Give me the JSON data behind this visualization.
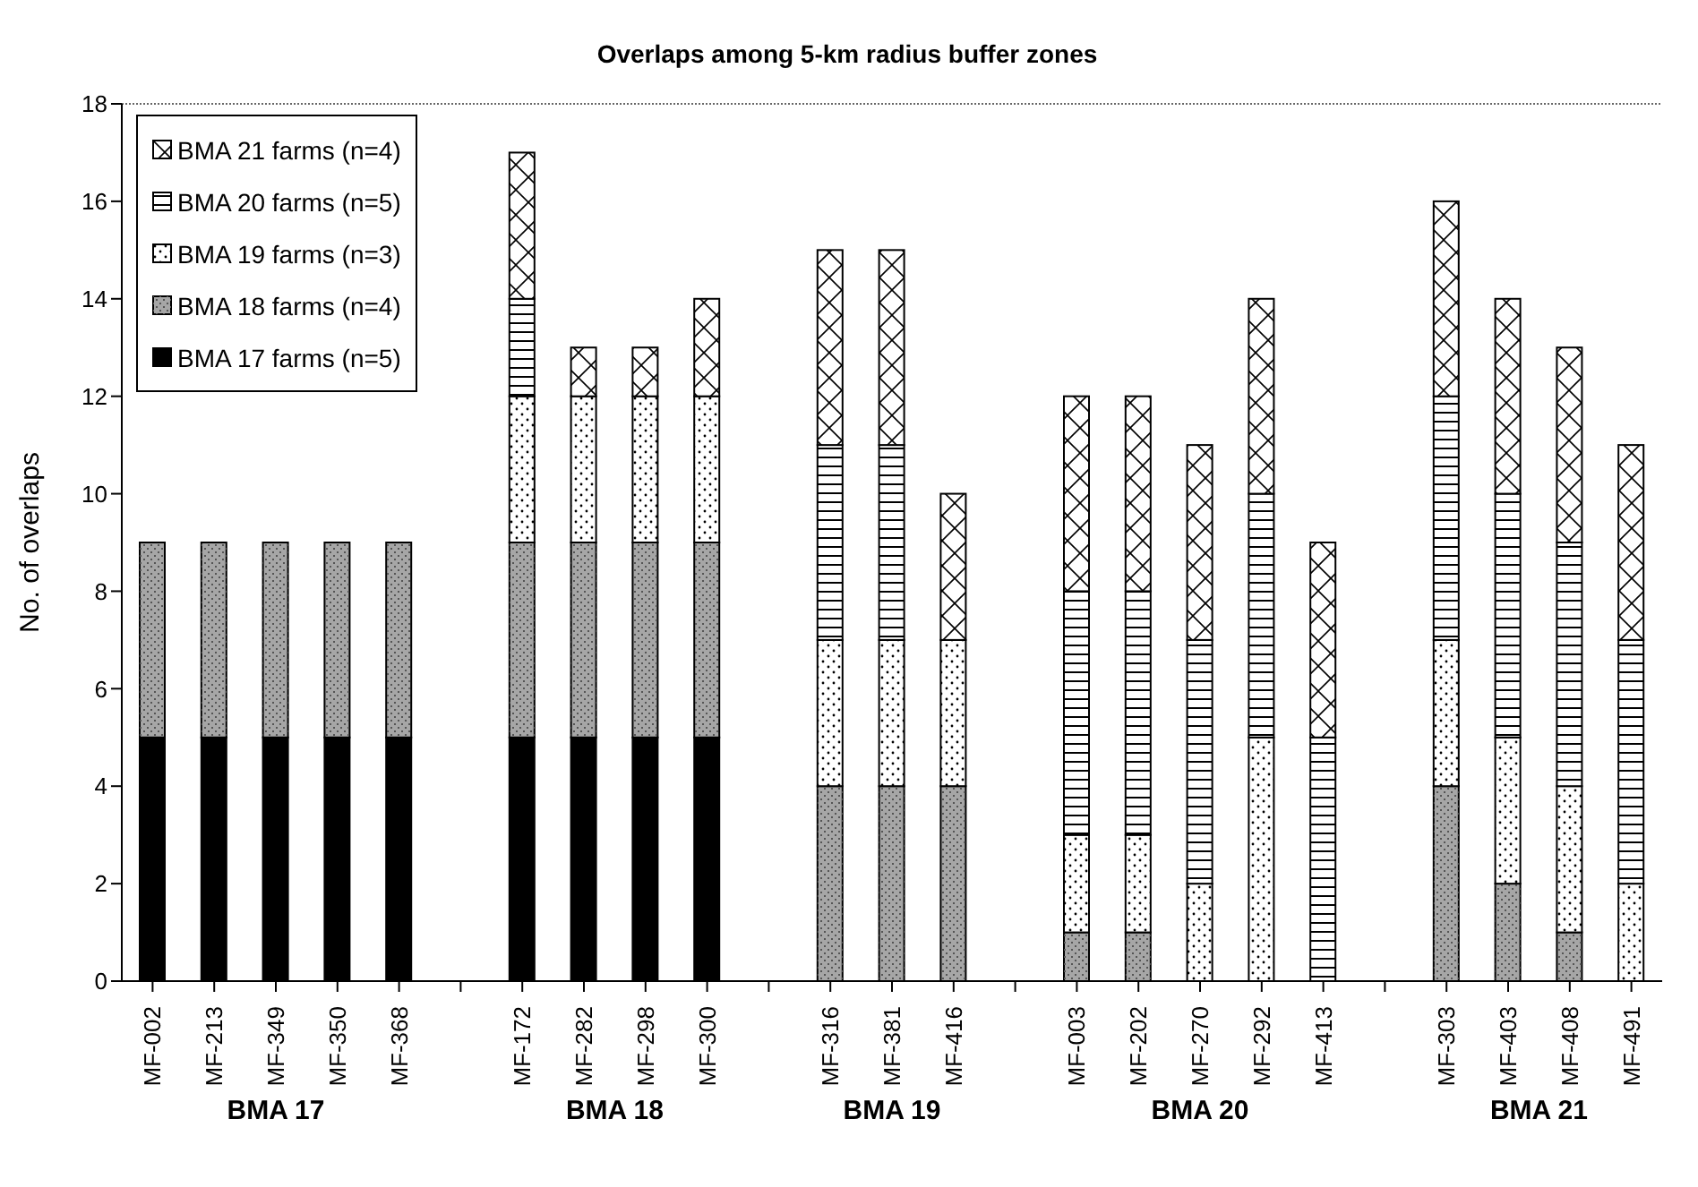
{
  "chart_data": {
    "type": "bar",
    "title": "Overlaps among 5-km radius buffer zones",
    "ylabel": "No. of overlaps",
    "categories": [
      "MF-002",
      "MF-213",
      "MF-349",
      "MF-350",
      "MF-368",
      null,
      "MF-172",
      "MF-282",
      "MF-298",
      "MF-300",
      null,
      "MF-316",
      "MF-381",
      "MF-416",
      null,
      "MF-003",
      "MF-202",
      "MF-270",
      "MF-292",
      "MF-413",
      null,
      "MF-303",
      "MF-403",
      "MF-408",
      "MF-491"
    ],
    "stacked": true,
    "series": [
      {
        "name": "BMA 17 farms (n=5)",
        "color": "#000000",
        "values": [
          5,
          5,
          5,
          5,
          5,
          null,
          5,
          5,
          5,
          5,
          null,
          0,
          0,
          0,
          null,
          0,
          0,
          0,
          0,
          0,
          null,
          0,
          0,
          0,
          0
        ]
      },
      {
        "name": "BMA 18 farms (n=4)",
        "color": "#a6a6a6",
        "values": [
          4,
          4,
          4,
          4,
          4,
          null,
          4,
          4,
          4,
          4,
          null,
          4,
          4,
          4,
          null,
          1,
          1,
          0,
          0,
          0,
          null,
          4,
          2,
          1,
          0
        ]
      },
      {
        "name": "BMA 19 farms (n=3)",
        "color": "#ffffff",
        "values": [
          0,
          0,
          0,
          0,
          0,
          null,
          3,
          3,
          3,
          3,
          null,
          3,
          3,
          3,
          null,
          2,
          2,
          2,
          5,
          0,
          null,
          3,
          3,
          3,
          2
        ]
      },
      {
        "name": "BMA 20 farms (n=5)",
        "color": "#ffffff",
        "values": [
          0,
          0,
          0,
          0,
          0,
          null,
          2,
          0,
          0,
          0,
          null,
          4,
          4,
          0,
          null,
          5,
          5,
          5,
          5,
          5,
          null,
          5,
          5,
          5,
          5
        ]
      },
      {
        "name": "BMA 21 farms (n=4)",
        "color": "#ffffff",
        "values": [
          0,
          0,
          0,
          0,
          0,
          null,
          3,
          1,
          1,
          2,
          null,
          4,
          4,
          3,
          null,
          4,
          4,
          4,
          4,
          4,
          null,
          4,
          4,
          4,
          4
        ]
      }
    ],
    "ylim": [
      0,
      18
    ],
    "yticks": [
      0,
      2,
      4,
      6,
      8,
      10,
      12,
      14,
      16,
      18
    ],
    "grid": false,
    "legend": "top left",
    "annotations": [
      "BMA 17",
      "BMA 18",
      "BMA 19",
      "BMA 20",
      "BMA 21"
    ]
  }
}
